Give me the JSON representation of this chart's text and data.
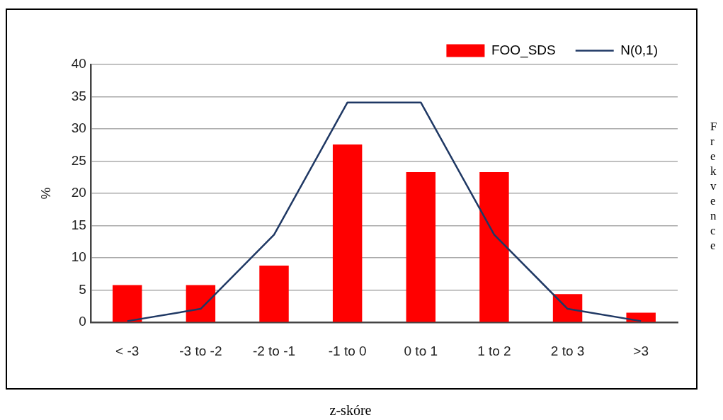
{
  "chart_data": {
    "type": "bar",
    "xlabel": "z-skóre",
    "ylabel": "%",
    "categories": [
      "< -3",
      "-3 to -2",
      "-2 to -1",
      "-1 to 0",
      "0 to 1",
      "1 to 2",
      "2 to 3",
      ">3"
    ],
    "series": [
      {
        "name": "FOO_SDS",
        "color": "#ff0000",
        "values": [
          5.8,
          5.8,
          8.8,
          27.6,
          23.3,
          23.3,
          4.4,
          1.5
        ]
      },
      {
        "name": "N(0,1)",
        "type": "line",
        "color": "#1f3864",
        "values": [
          0.2,
          2.1,
          13.6,
          34.1,
          34.1,
          13.6,
          2.1,
          0.2
        ]
      }
    ],
    "ylim": [
      0,
      40
    ],
    "yticks": [
      0,
      5,
      10,
      15,
      20,
      25,
      30,
      35,
      40
    ],
    "grid": "y",
    "legend": "top right",
    "marker": "none",
    "annotations": [
      "Frekvence"
    ]
  }
}
